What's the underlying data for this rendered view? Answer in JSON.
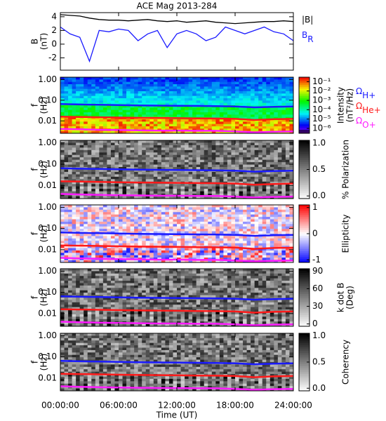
{
  "chart_data": [
    {
      "type": "line",
      "title": "ACE Mag 2013-284",
      "ylabel": [
        "B",
        "(nT)"
      ],
      "x": [
        0,
        1,
        2,
        3,
        4,
        5,
        6,
        7,
        8,
        9,
        10,
        11,
        12,
        13,
        14,
        15,
        16,
        17,
        18,
        19,
        20,
        21,
        22,
        23,
        24
      ],
      "xlim": [
        0,
        24
      ],
      "ylim": [
        -3.8,
        4.6
      ],
      "yticks": [
        -2,
        0,
        2,
        4
      ],
      "series": [
        {
          "name": "|B|",
          "color": "#000000",
          "values": [
            4.3,
            4.2,
            4.1,
            3.8,
            3.6,
            3.5,
            3.5,
            3.4,
            3.5,
            3.6,
            3.4,
            3.3,
            3.4,
            3.2,
            3.3,
            3.4,
            3.2,
            3.1,
            3.0,
            3.1,
            3.2,
            3.3,
            3.3,
            3.4,
            3.3
          ]
        },
        {
          "name": "B",
          "name_sub": "R",
          "color": "#1a1aff",
          "values": [
            2.5,
            1.5,
            1.0,
            -2.5,
            2.0,
            1.8,
            2.2,
            2.0,
            0.5,
            1.5,
            2.0,
            -0.5,
            1.5,
            2.0,
            1.5,
            0.5,
            1.0,
            2.5,
            2.0,
            1.5,
            2.0,
            2.5,
            1.8,
            1.5,
            0.5
          ]
        }
      ]
    },
    {
      "type": "spectrogram",
      "ylabel": [
        "f",
        "(Hz)"
      ],
      "xlim": [
        0,
        24
      ],
      "ylim": [
        0.0025,
        1.3
      ],
      "log_y": true,
      "yticks": [
        {
          "value": 1,
          "label": "1.00"
        },
        {
          "value": 0.1,
          "label": "0.10"
        },
        {
          "value": 0.01,
          "label": "0.01"
        }
      ],
      "colorbar": {
        "title": [
          "Intensity",
          "(nT²/Hz)"
        ],
        "colormap": "rainbow",
        "log": true,
        "lim": [
          3e-07,
          0.3
        ],
        "ticks": [
          {
            "value": 0.1,
            "label": "10⁻¹"
          },
          {
            "value": 0.01,
            "label": "10⁻²"
          },
          {
            "value": 0.001,
            "label": "10⁻³"
          },
          {
            "value": 0.0001,
            "label": "10⁻⁴"
          },
          {
            "value": 1e-05,
            "label": "10⁻⁵"
          },
          {
            "value": 1e-06,
            "label": "10⁻⁶"
          }
        ]
      },
      "x": [
        0,
        2,
        4,
        6,
        8,
        10,
        12,
        14,
        16,
        18,
        20,
        22,
        24
      ],
      "series": [
        {
          "name": "Ω",
          "name_sub": "H+",
          "color": "#1a1aff",
          "values": [
            0.065,
            0.062,
            0.06,
            0.058,
            0.056,
            0.055,
            0.054,
            0.053,
            0.052,
            0.05,
            0.045,
            0.048,
            0.05
          ]
        },
        {
          "name": "Ω",
          "name_sub": "He+",
          "color": "#ff1a1a",
          "values": [
            0.016,
            0.0155,
            0.015,
            0.0145,
            0.014,
            0.0138,
            0.0135,
            0.0132,
            0.013,
            0.0125,
            0.011,
            0.012,
            0.0125
          ]
        },
        {
          "name": "Ω",
          "name_sub": "O+",
          "color": "#ff1aff",
          "values": [
            0.0041,
            0.0039,
            0.0037,
            0.0036,
            0.0035,
            0.0034,
            0.0034,
            0.0033,
            0.0033,
            0.0031,
            0.0028,
            0.003,
            0.0031
          ]
        }
      ]
    },
    {
      "type": "spectrogram",
      "ylabel": [
        "f",
        "(Hz)"
      ],
      "xlim": [
        0,
        24
      ],
      "ylim": [
        0.0025,
        1.3
      ],
      "log_y": true,
      "yticks": [
        {
          "value": 1,
          "label": "1.00"
        },
        {
          "value": 0.1,
          "label": "0.10"
        },
        {
          "value": 0.01,
          "label": "0.01"
        }
      ],
      "colorbar": {
        "title": [
          "% Polarization"
        ],
        "colormap": "gray",
        "lim": [
          -0.05,
          1.05
        ],
        "ticks": [
          {
            "value": 1,
            "label": "1.0"
          },
          {
            "value": 0.5,
            "label": "0.5"
          },
          {
            "value": 0,
            "label": "0.0"
          }
        ]
      }
    },
    {
      "type": "spectrogram",
      "ylabel": [
        "f",
        "(Hz)"
      ],
      "xlim": [
        0,
        24
      ],
      "ylim": [
        0.0025,
        1.3
      ],
      "log_y": true,
      "yticks": [
        {
          "value": 1,
          "label": "1.00"
        },
        {
          "value": 0.1,
          "label": "0.10"
        },
        {
          "value": 0.01,
          "label": "0.01"
        }
      ],
      "colorbar": {
        "title": [
          "Ellipticity"
        ],
        "colormap": "bwr",
        "lim": [
          -1.1,
          1.1
        ],
        "ticks": [
          1,
          0,
          -1
        ]
      }
    },
    {
      "type": "spectrogram",
      "ylabel": [
        "f",
        "(Hz)"
      ],
      "xlim": [
        0,
        24
      ],
      "ylim": [
        0.0025,
        1.3
      ],
      "log_y": true,
      "yticks": [
        {
          "value": 1,
          "label": "1.00"
        },
        {
          "value": 0.1,
          "label": "0.10"
        },
        {
          "value": 0.01,
          "label": "0.01"
        }
      ],
      "colorbar": {
        "title": [
          "k dot B",
          "(Deg)"
        ],
        "colormap": "gray",
        "lim": [
          -4,
          94
        ],
        "ticks": [
          90,
          60,
          30,
          0
        ]
      }
    },
    {
      "type": "spectrogram",
      "ylabel": [
        "f",
        "(Hz)"
      ],
      "xlim": [
        0,
        24
      ],
      "ylim": [
        0.0025,
        1.3
      ],
      "log_y": true,
      "yticks": [
        {
          "value": 1,
          "label": "1.00"
        },
        {
          "value": 0.1,
          "label": "0.10"
        },
        {
          "value": 0.01,
          "label": "0.01"
        }
      ],
      "colorbar": {
        "title": [
          "Coherency"
        ],
        "colormap": "gray",
        "lim": [
          -0.05,
          1.05
        ],
        "ticks": [
          {
            "value": 1,
            "label": "1.0"
          },
          {
            "value": 0.5,
            "label": "0.5"
          },
          {
            "value": 0,
            "label": "0.0"
          }
        ]
      },
      "xlabel": "Time (UT)",
      "xticks": [
        {
          "value": 0,
          "label": "00:00:00"
        },
        {
          "value": 6,
          "label": "06:00:00"
        },
        {
          "value": 12,
          "label": "12:00:00"
        },
        {
          "value": 18,
          "label": "18:00:00"
        },
        {
          "value": 24,
          "label": "24:00:00"
        }
      ]
    }
  ]
}
